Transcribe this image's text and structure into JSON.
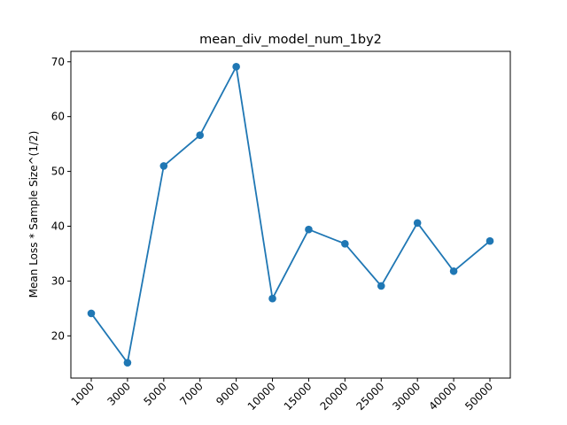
{
  "chart_data": {
    "type": "line",
    "title": "mean_div_model_num_1by2",
    "xlabel": "",
    "ylabel": "Mean Loss * Sample Size^(1/2)",
    "categories": [
      "1000",
      "3000",
      "5000",
      "7000",
      "9000",
      "10000",
      "15000",
      "20000",
      "25000",
      "30000",
      "40000",
      "50000"
    ],
    "series": [
      {
        "values": [
          24.1,
          15.1,
          51.0,
          56.6,
          69.1,
          26.8,
          39.4,
          36.8,
          29.1,
          40.6,
          31.8,
          37.3
        ]
      }
    ],
    "ylim": [
      12.3,
      71.9
    ],
    "yticks": [
      20,
      30,
      40,
      50,
      60,
      70
    ],
    "grid": false,
    "markers": "circle",
    "color": "#1f77b4"
  }
}
